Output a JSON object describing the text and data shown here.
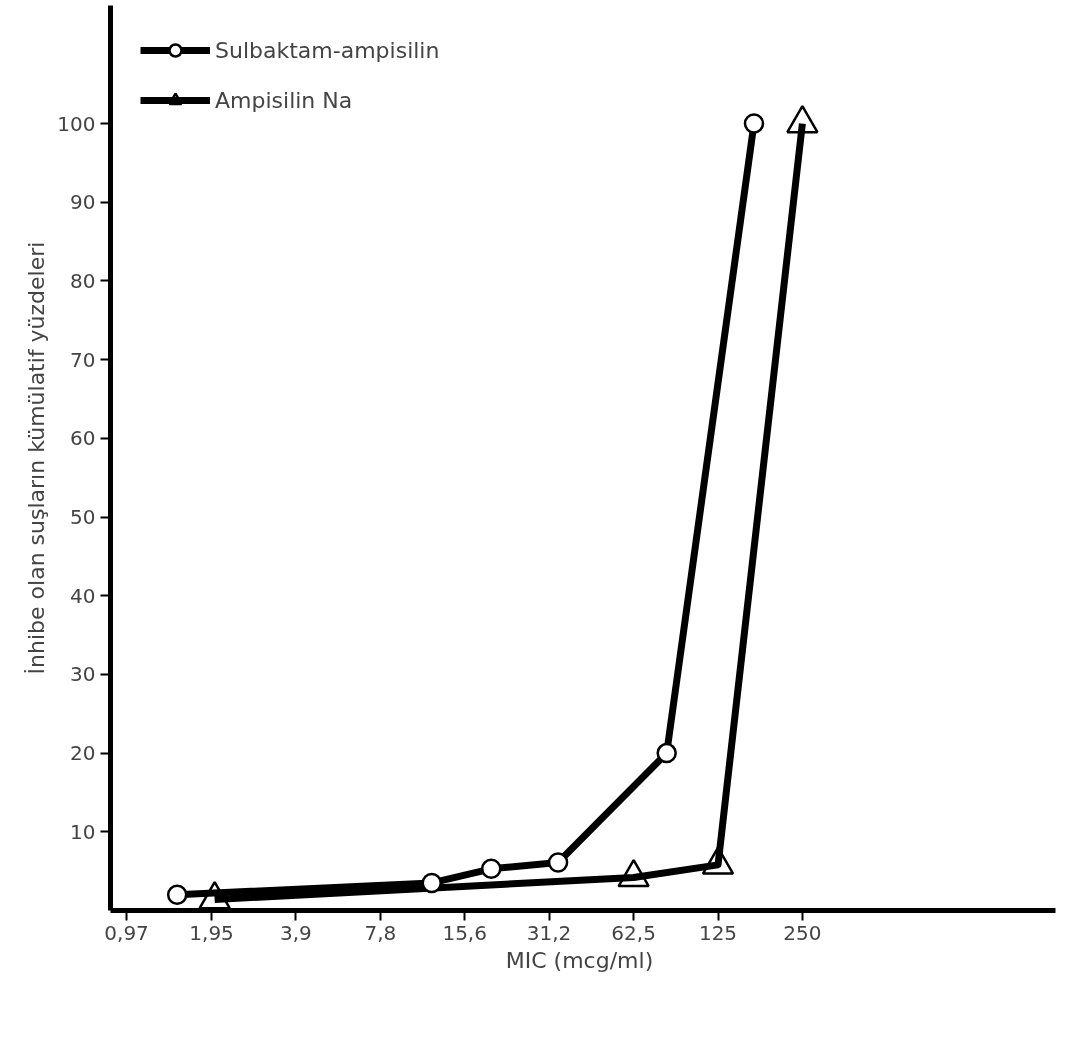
{
  "chart_data": {
    "type": "line",
    "xlabel": "MIC  (mcg/ml)",
    "ylabel": "İnhibe olan suşların kümülatif yüzdeleri",
    "log": "x",
    "grid": false,
    "legend": "top left",
    "xlim": [
      0.85,
      2000
    ],
    "ylim": [
      0,
      115
    ],
    "xticks": [
      {
        "value": 0.97,
        "label": "0,97"
      },
      {
        "value": 1.95,
        "label": "1,95"
      },
      {
        "value": 3.9,
        "label": "3,9"
      },
      {
        "value": 7.8,
        "label": "7,8"
      },
      {
        "value": 15.6,
        "label": "15,6"
      },
      {
        "value": 31.2,
        "label": "31,2"
      },
      {
        "value": 62.5,
        "label": "62,5"
      },
      125,
      250
    ],
    "yticks": [
      10,
      20,
      30,
      40,
      50,
      60,
      70,
      80,
      90,
      100
    ],
    "series": [
      {
        "name": "Sulbaktam-ampisilin",
        "color": "#000000",
        "marker": "circle",
        "x": [
          1.47,
          11.9,
          19.4,
          33.6,
          82,
          168
        ],
        "values": [
          2,
          3.5,
          5.3,
          6.1,
          20,
          100
        ]
      },
      {
        "name": "Ampisilin Na",
        "color": "#000000",
        "marker": "triangle",
        "x": [
          2.0,
          62.5,
          125,
          250
        ],
        "values": [
          1.4,
          4.2,
          5.8,
          100
        ]
      }
    ]
  }
}
